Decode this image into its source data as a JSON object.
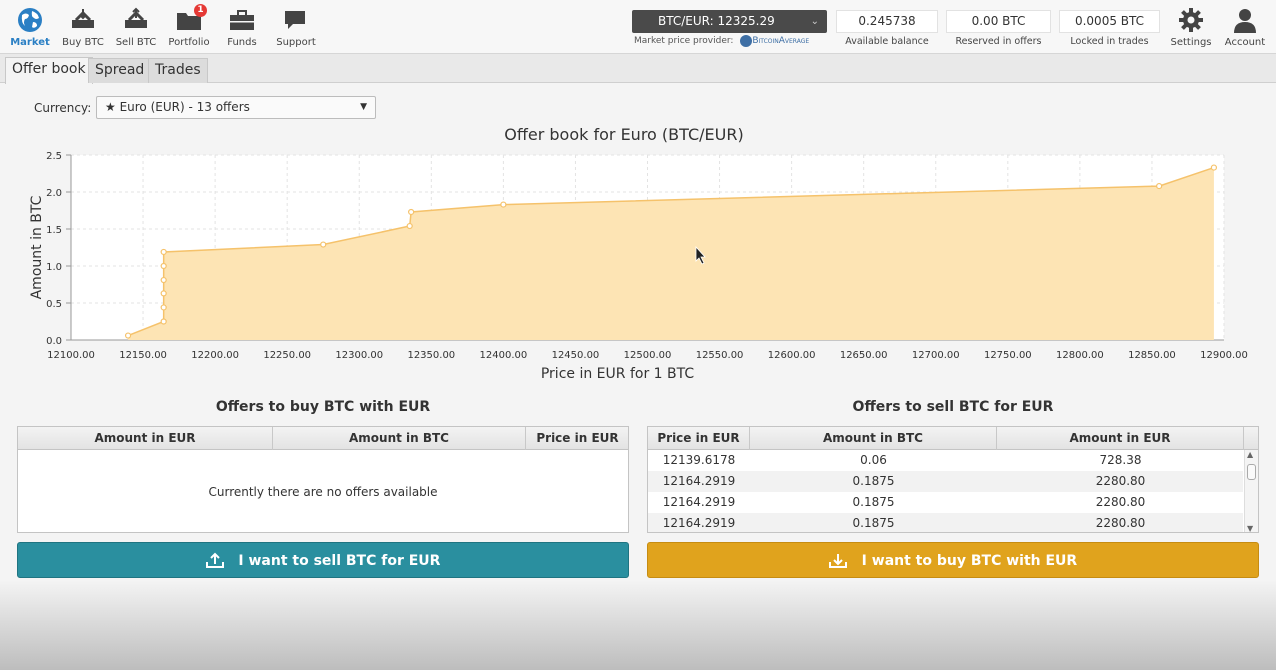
{
  "nav": {
    "items": [
      {
        "label": "Market",
        "icon": "globe-icon",
        "active": true
      },
      {
        "label": "Buy BTC",
        "icon": "buy-btc-icon"
      },
      {
        "label": "Sell BTC",
        "icon": "sell-btc-icon"
      },
      {
        "label": "Portfolio",
        "icon": "folder-icon",
        "badge": "1"
      },
      {
        "label": "Funds",
        "icon": "briefcase-icon"
      },
      {
        "label": "Support",
        "icon": "chat-icon"
      }
    ],
    "right_items": [
      {
        "label": "Settings",
        "icon": "gear-icon"
      },
      {
        "label": "Account",
        "icon": "user-icon"
      }
    ]
  },
  "market": {
    "price_select": "BTC/EUR: 12325.29",
    "provider_label": "Market price provider:",
    "provider_name": "BitcoinAverage"
  },
  "balances": [
    {
      "value": "0.245738",
      "label": "Available balance"
    },
    {
      "value": "0.00 BTC",
      "label": "Reserved in offers"
    },
    {
      "value": "0.0005 BTC",
      "label": "Locked in trades"
    }
  ],
  "tabs": [
    "Offer book",
    "Spread",
    "Trades"
  ],
  "currency": {
    "label": "Currency:",
    "selected": "★ Euro (EUR) - 13 offers"
  },
  "chart_data": {
    "type": "area",
    "title": "Offer book for Euro (BTC/EUR)",
    "xlabel": "Price in EUR for 1 BTC",
    "ylabel": "Amount in BTC",
    "xlim": [
      12100,
      12900
    ],
    "ylim": [
      0,
      2.5
    ],
    "x_ticks": [
      "12100.00",
      "12150.00",
      "12200.00",
      "12250.00",
      "12300.00",
      "12350.00",
      "12400.00",
      "12450.00",
      "12500.00",
      "12550.00",
      "12600.00",
      "12650.00",
      "12700.00",
      "12750.00",
      "12800.00",
      "12850.00",
      "12900.00"
    ],
    "y_ticks": [
      "0.0",
      "0.5",
      "1.0",
      "1.5",
      "2.0",
      "2.5"
    ],
    "grid": true,
    "color": "#f5c26b",
    "fill": "#fde4b4",
    "points": [
      [
        12139.6,
        0.06
      ],
      [
        12164.3,
        0.25
      ],
      [
        12164.3,
        0.44
      ],
      [
        12164.3,
        0.63
      ],
      [
        12164.3,
        0.81
      ],
      [
        12164.3,
        1.0
      ],
      [
        12164.3,
        1.19
      ],
      [
        12275.0,
        1.29
      ],
      [
        12335.0,
        1.54
      ],
      [
        12336.0,
        1.73
      ],
      [
        12400.0,
        1.83
      ],
      [
        12855.0,
        2.08
      ],
      [
        12893.0,
        2.33
      ]
    ]
  },
  "buy_offers": {
    "title": "Offers to buy BTC with EUR",
    "columns": [
      "Amount in EUR",
      "Amount in BTC",
      "Price in EUR"
    ],
    "empty_message": "Currently there are no offers available"
  },
  "sell_offers": {
    "title": "Offers to sell BTC for EUR",
    "columns": [
      "Price in EUR",
      "Amount in BTC",
      "Amount in EUR"
    ],
    "rows": [
      [
        "12139.6178",
        "0.06",
        "728.38"
      ],
      [
        "12164.2919",
        "0.1875",
        "2280.80"
      ],
      [
        "12164.2919",
        "0.1875",
        "2280.80"
      ],
      [
        "12164.2919",
        "0.1875",
        "2280.80"
      ]
    ]
  },
  "actions": {
    "sell_label": "I want to sell BTC for EUR",
    "buy_label": "I want to buy BTC with EUR",
    "sell_color": "#2a8f9f",
    "buy_color": "#e0a31d"
  }
}
